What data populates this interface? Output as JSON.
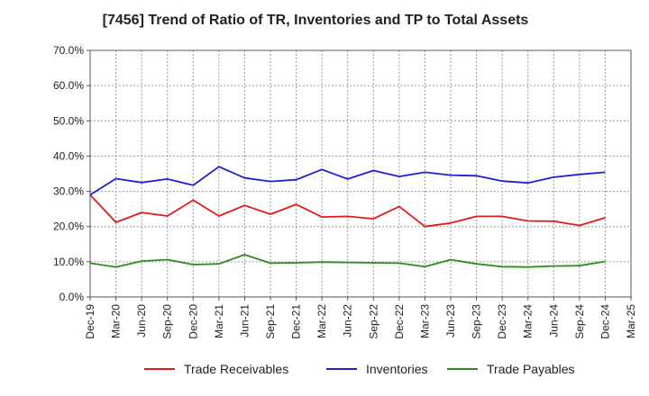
{
  "chart_data": {
    "type": "line",
    "title": "[7456]  Trend of Ratio of TR, Inventories and TP to Total Assets",
    "xlabel": "",
    "ylabel": "",
    "ylim": [
      0,
      70
    ],
    "yticks": [
      "0.0%",
      "10.0%",
      "20.0%",
      "30.0%",
      "40.0%",
      "50.0%",
      "60.0%",
      "70.0%"
    ],
    "grid": true,
    "legend_position": "bottom",
    "categories": [
      "Dec-19",
      "Mar-20",
      "Jun-20",
      "Sep-20",
      "Dec-20",
      "Mar-21",
      "Jun-21",
      "Sep-21",
      "Dec-21",
      "Mar-22",
      "Jun-22",
      "Sep-22",
      "Dec-22",
      "Mar-23",
      "Jun-23",
      "Sep-23",
      "Dec-23",
      "Mar-24",
      "Jun-24",
      "Sep-24",
      "Dec-24",
      "Mar-25"
    ],
    "series": [
      {
        "name": "Trade Receivables",
        "color": "#e31a1c",
        "values": [
          29.0,
          21.2,
          24.0,
          23.0,
          27.5,
          23.0,
          26.0,
          23.5,
          26.3,
          22.7,
          22.9,
          22.2,
          25.7,
          20.0,
          21.0,
          22.9,
          22.9,
          21.6,
          21.5,
          20.3,
          22.5,
          null
        ]
      },
      {
        "name": "Inventories",
        "color": "#1f1fcf",
        "values": [
          29.0,
          33.6,
          32.5,
          33.5,
          31.7,
          37.0,
          33.8,
          32.8,
          33.3,
          36.2,
          33.5,
          35.9,
          34.2,
          35.4,
          34.6,
          34.4,
          32.9,
          32.4,
          34.0,
          34.8,
          35.4,
          null
        ]
      },
      {
        "name": "Trade Payables",
        "color": "#2e8b22",
        "values": [
          9.6,
          8.5,
          10.2,
          10.6,
          9.2,
          9.4,
          12.0,
          9.6,
          9.7,
          9.9,
          9.8,
          9.7,
          9.6,
          8.6,
          10.6,
          9.4,
          8.6,
          8.5,
          8.8,
          8.9,
          10.1,
          null
        ]
      }
    ]
  }
}
